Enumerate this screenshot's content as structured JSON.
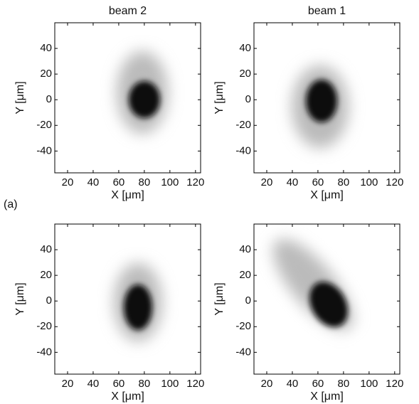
{
  "chart_data": [
    {
      "type": "image",
      "title": "beam 2",
      "xlabel": "X [μm]",
      "ylabel": "Y [μm]",
      "xlim": [
        10,
        124
      ],
      "xticks": [
        20,
        40,
        60,
        80,
        100,
        120
      ],
      "ylim": [
        -57,
        60
      ],
      "yticks": [
        -40,
        -20,
        0,
        20,
        40
      ]
    },
    {
      "type": "image",
      "title": "beam 1",
      "xlabel": "X [μm]",
      "ylabel": "Y [μm]",
      "xlim": [
        10,
        124
      ],
      "xticks": [
        20,
        40,
        60,
        80,
        100,
        120
      ],
      "ylim": [
        -57,
        60
      ],
      "yticks": [
        -40,
        -20,
        0,
        20,
        40
      ]
    },
    {
      "type": "image",
      "panel_label": "(a)",
      "xlabel": "X [μm]",
      "ylabel": "Y [μm]",
      "xlim": [
        10,
        124
      ],
      "xticks": [
        20,
        40,
        60,
        80,
        100,
        120
      ],
      "ylim": [
        -57,
        60
      ],
      "yticks": [
        -40,
        -20,
        0,
        20,
        40
      ]
    },
    {
      "type": "image",
      "xlabel": "X [μm]",
      "ylabel": "Y [μm]",
      "xlim": [
        10,
        124
      ],
      "xticks": [
        20,
        40,
        60,
        80,
        100,
        120
      ],
      "ylim": [
        -57,
        60
      ],
      "yticks": [
        -40,
        -20,
        0,
        20,
        40
      ]
    }
  ]
}
